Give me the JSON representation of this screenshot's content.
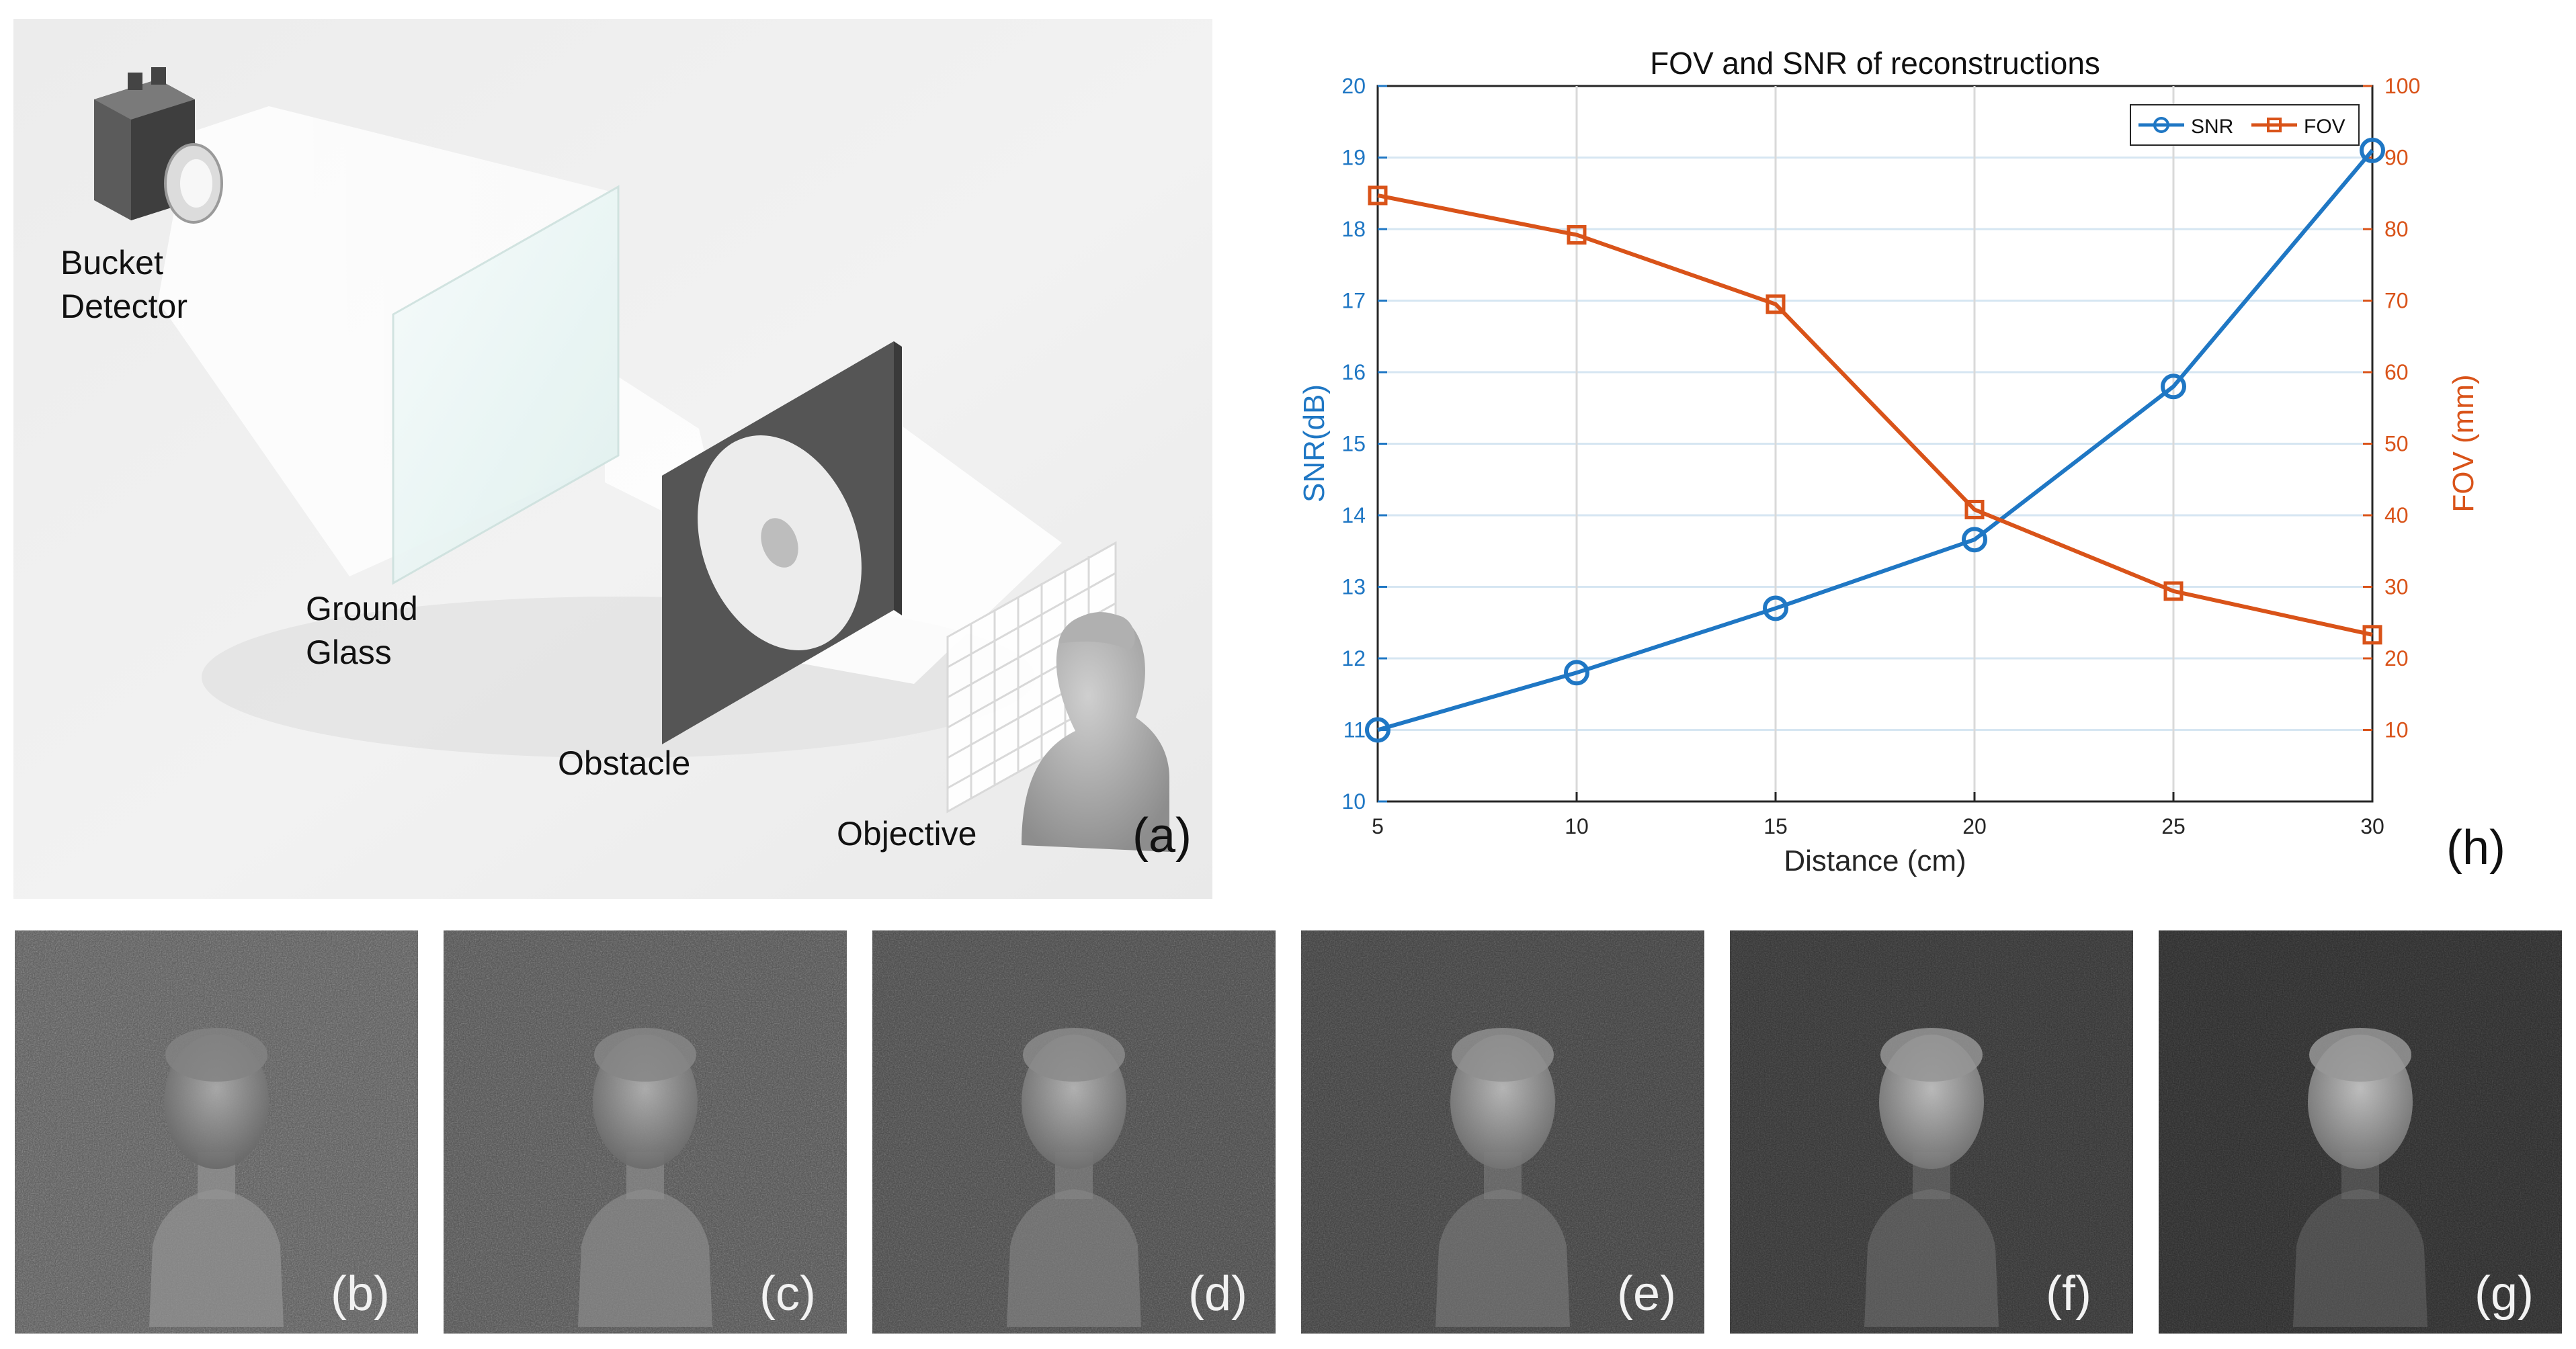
{
  "scene": {
    "labels": {
      "bucket_detector": [
        "Bucket",
        "Detector"
      ],
      "ground_glass": [
        "Ground",
        "Glass"
      ],
      "obstacle": "Obstacle",
      "objective": "Objective"
    },
    "panel_label": "(a)"
  },
  "chart_panel_label": "(h)",
  "reconstructions": [
    {
      "label": "(b)",
      "brightness": 0.62
    },
    {
      "label": "(c)",
      "brightness": 0.52
    },
    {
      "label": "(d)",
      "brightness": 0.42
    },
    {
      "label": "(e)",
      "brightness": 0.32
    },
    {
      "label": "(f)",
      "brightness": 0.2
    },
    {
      "label": "(g)",
      "brightness": 0.12
    }
  ],
  "chart_data": {
    "type": "line",
    "title": "FOV and SNR of reconstructions",
    "xlabel": "Distance (cm)",
    "ylabel": "SNR(dB)",
    "y2label": "FOV (mm)",
    "x": [
      5,
      10,
      15,
      20,
      25,
      30
    ],
    "xticks": [
      5,
      10,
      15,
      20,
      25,
      30
    ],
    "xlim": [
      5,
      30
    ],
    "ylim": [
      10,
      20
    ],
    "yticks": [
      10,
      11,
      12,
      13,
      14,
      15,
      16,
      17,
      18,
      19,
      20
    ],
    "y2lim": [
      0,
      100
    ],
    "y2ticks": [
      10,
      20,
      30,
      40,
      50,
      60,
      70,
      80,
      90,
      100
    ],
    "grid": true,
    "legend_position": "top-right",
    "series": [
      {
        "name": "SNR",
        "axis": "left",
        "marker": "circle",
        "color": "#1f77c4",
        "values": [
          11.0,
          11.8,
          12.7,
          13.66,
          15.8,
          19.1
        ]
      },
      {
        "name": "FOV",
        "axis": "right",
        "marker": "square",
        "color": "#d95319",
        "values": [
          84.7,
          79.2,
          69.5,
          40.8,
          29.4,
          23.3
        ]
      }
    ]
  }
}
